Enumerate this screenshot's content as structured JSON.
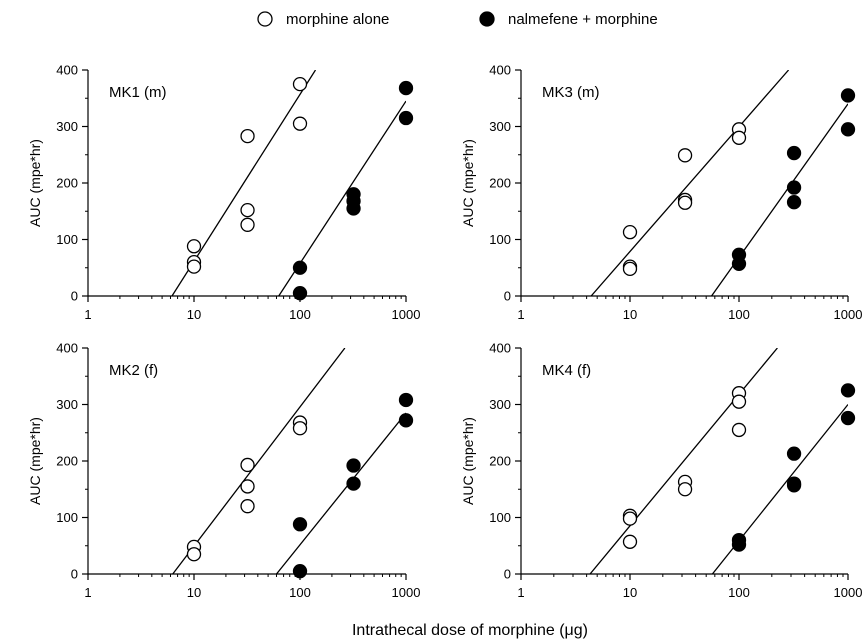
{
  "legend": [
    {
      "name": "morphine alone",
      "marker": "open-circle"
    },
    {
      "name": "nalmefene + morphine",
      "marker": "filled-circle"
    }
  ],
  "xlabel": "Intrathecal dose of morphine (μg)",
  "chart_data": [
    {
      "type": "scatter",
      "panel": "MK1 (m)",
      "ylabel": "AUC (mpe*hr)",
      "xscale": "log",
      "xlim": [
        1,
        1000
      ],
      "ylim": [
        0,
        400
      ],
      "xticks": [
        1,
        10,
        100,
        1000
      ],
      "yticks": [
        0,
        100,
        200,
        300,
        400
      ],
      "series": [
        {
          "name": "morphine alone",
          "points": [
            [
              10,
              88
            ],
            [
              10,
              60
            ],
            [
              10,
              52
            ],
            [
              32,
              283
            ],
            [
              32,
              152
            ],
            [
              32,
              126
            ],
            [
              100,
              375
            ],
            [
              100,
              305
            ]
          ],
          "fit_line": [
            [
              6.2,
              0
            ],
            [
              140,
              400
            ]
          ]
        },
        {
          "name": "nalmefene + morphine",
          "points": [
            [
              100,
              50
            ],
            [
              100,
              5
            ],
            [
              320,
              180
            ],
            [
              320,
              168
            ],
            [
              320,
              155
            ],
            [
              1000,
              368
            ],
            [
              1000,
              315
            ]
          ],
          "fit_line": [
            [
              63,
              0
            ],
            [
              1000,
              345
            ]
          ]
        }
      ]
    },
    {
      "type": "scatter",
      "panel": "MK3 (m)",
      "ylabel": "AUC (mpe*hr)",
      "xscale": "log",
      "xlim": [
        1,
        1000
      ],
      "ylim": [
        0,
        400
      ],
      "xticks": [
        1,
        10,
        100,
        1000
      ],
      "yticks": [
        0,
        100,
        200,
        300,
        400
      ],
      "series": [
        {
          "name": "morphine alone",
          "points": [
            [
              10,
              113
            ],
            [
              10,
              52
            ],
            [
              10,
              48
            ],
            [
              32,
              249
            ],
            [
              32,
              170
            ],
            [
              32,
              165
            ],
            [
              100,
              295
            ],
            [
              100,
              280
            ]
          ],
          "fit_line": [
            [
              4.4,
              0
            ],
            [
              285,
              400
            ]
          ]
        },
        {
          "name": "nalmefene + morphine",
          "points": [
            [
              100,
              73
            ],
            [
              100,
              57
            ],
            [
              320,
              253
            ],
            [
              320,
              192
            ],
            [
              320,
              166
            ],
            [
              1000,
              355
            ],
            [
              1000,
              295
            ]
          ],
          "fit_line": [
            [
              56,
              0
            ],
            [
              1000,
              340
            ]
          ]
        }
      ]
    },
    {
      "type": "scatter",
      "panel": "MK2 (f)",
      "ylabel": "AUC (mpe*hr)",
      "xscale": "log",
      "xlim": [
        1,
        1000
      ],
      "ylim": [
        0,
        400
      ],
      "xticks": [
        1,
        10,
        100,
        1000
      ],
      "yticks": [
        0,
        100,
        200,
        300,
        400
      ],
      "series": [
        {
          "name": "morphine alone",
          "points": [
            [
              10,
              48
            ],
            [
              10,
              35
            ],
            [
              32,
              193
            ],
            [
              32,
              155
            ],
            [
              32,
              120
            ],
            [
              100,
              268
            ],
            [
              100,
              258
            ]
          ],
          "fit_line": [
            [
              6.3,
              0
            ],
            [
              265,
              400
            ]
          ]
        },
        {
          "name": "nalmefene + morphine",
          "points": [
            [
              100,
              88
            ],
            [
              100,
              5
            ],
            [
              320,
              192
            ],
            [
              320,
              160
            ],
            [
              1000,
              308
            ],
            [
              1000,
              272
            ]
          ],
          "fit_line": [
            [
              60,
              0
            ],
            [
              1000,
              285
            ]
          ]
        }
      ]
    },
    {
      "type": "scatter",
      "panel": "MK4 (f)",
      "ylabel": "AUC (mpe*hr)",
      "xscale": "log",
      "xlim": [
        1,
        1000
      ],
      "ylim": [
        0,
        400
      ],
      "xticks": [
        1,
        10,
        100,
        1000
      ],
      "yticks": [
        0,
        100,
        200,
        300,
        400
      ],
      "series": [
        {
          "name": "morphine alone",
          "points": [
            [
              10,
              103
            ],
            [
              10,
              98
            ],
            [
              10,
              57
            ],
            [
              32,
              163
            ],
            [
              32,
              150
            ],
            [
              100,
              320
            ],
            [
              100,
              305
            ],
            [
              100,
              255
            ]
          ],
          "fit_line": [
            [
              4.3,
              0
            ],
            [
              225,
              400
            ]
          ]
        },
        {
          "name": "nalmefene + morphine",
          "points": [
            [
              100,
              60
            ],
            [
              100,
              52
            ],
            [
              320,
              213
            ],
            [
              320,
              160
            ],
            [
              320,
              157
            ],
            [
              1000,
              325
            ],
            [
              1000,
              276
            ]
          ],
          "fit_line": [
            [
              57,
              0
            ],
            [
              1000,
              300
            ]
          ]
        }
      ]
    }
  ]
}
